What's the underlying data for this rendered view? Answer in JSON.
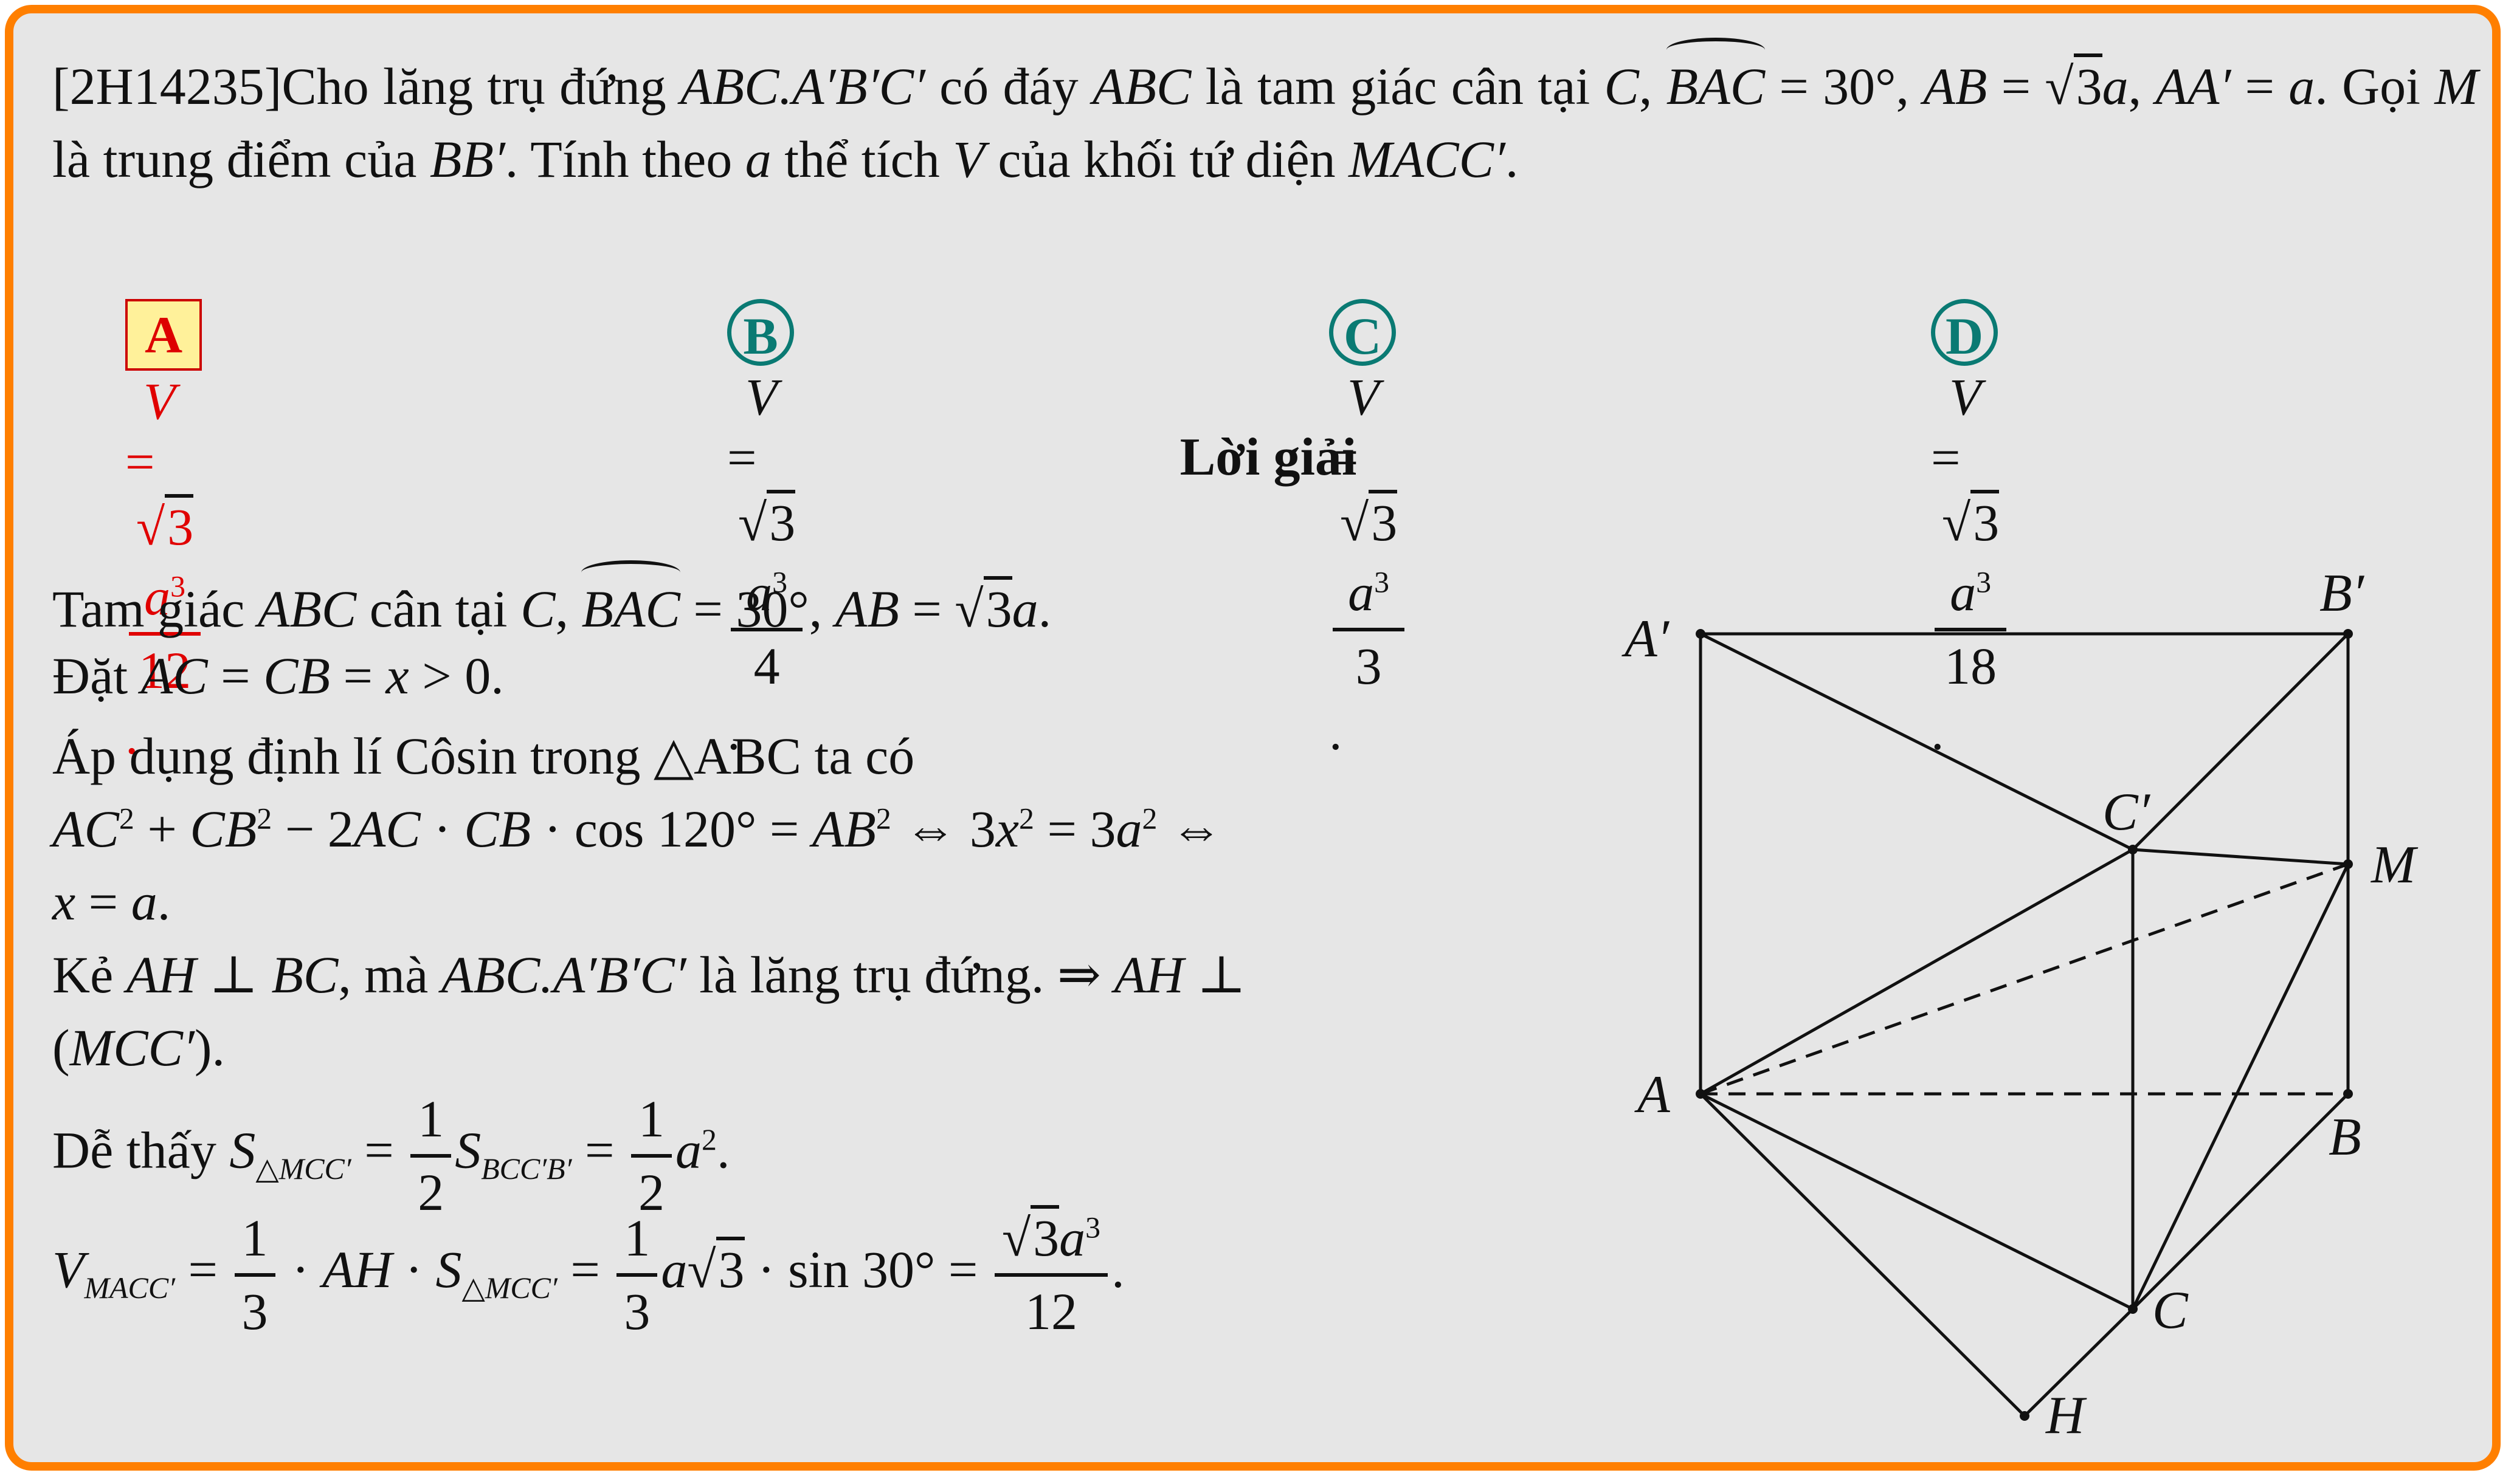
{
  "problem": {
    "code": "[2H14235]",
    "text": "Cho lăng trụ đứng ABC.A′B′C′ có đáy ABC là tam giác cân tại C, BAC = 30°, AB = √3a, AA′ = a. Gọi M là trung điểm của BB′. Tính theo a thể tích V của khối tứ diện MACC′."
  },
  "choices": [
    {
      "label": "A",
      "num": "√3a³",
      "den": "12",
      "correct": true
    },
    {
      "label": "B",
      "num": "√3a³",
      "den": "4",
      "correct": false
    },
    {
      "label": "C",
      "num": "√3a³",
      "den": "3",
      "correct": false
    },
    {
      "label": "D",
      "num": "√3a³",
      "den": "18",
      "correct": false
    }
  ],
  "solution_heading": "Lời giải",
  "solution": {
    "l1_a": "Tam giác ABC cân tại C, BAC = 30°, AB = √3a.",
    "l2": "Đặt AC = CB = x > 0.",
    "l3": "Áp dụng định lí Côsin trong △ABC ta có",
    "l4": "AC² + CB² − 2AC · CB · cos 120° = AB² ⇔ 3x² = 3a² ⇔",
    "l5": "x = a.",
    "l6": "Kẻ AH ⊥ BC, mà ABC.A′B′C′ là lăng trụ đứng. ⇒ AH ⊥",
    "l7": "(MCC′).",
    "l8": "Dễ thấy S△MCC′ = 1/2 SBCC′B′ = 1/2 a².",
    "l9": "VMACC′ = 1/3 · AH · S△MCC′ = 1/3 a√3 · sin 30° = √3a³/12."
  },
  "figure": {
    "points": [
      "A′",
      "B′",
      "C′",
      "M",
      "A",
      "B",
      "C",
      "H"
    ]
  },
  "colors": {
    "frame": "#ff7f00",
    "background": "#e6e6e6",
    "correct": "#e00000",
    "choice_badge": "#0a7a73"
  }
}
